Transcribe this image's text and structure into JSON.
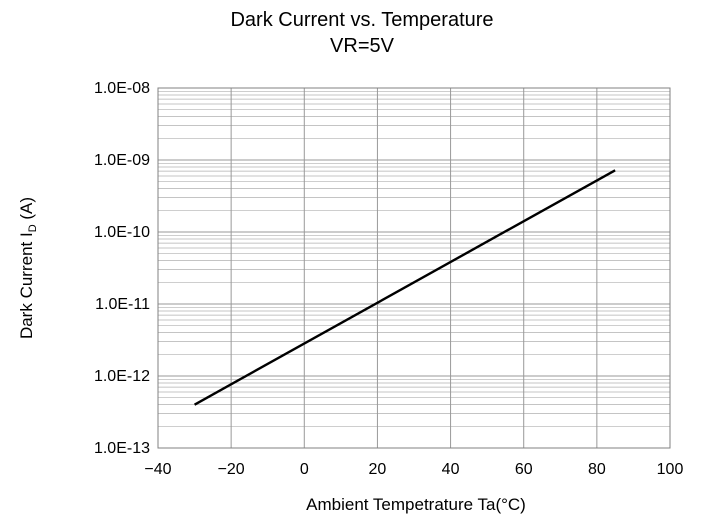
{
  "chart_data": {
    "type": "line",
    "title": "Dark Current vs. Temperature",
    "subtitle": "VR=5V",
    "xlabel": "Ambient Tempetrature Ta(°C)",
    "ylabel": {
      "prefix": "Dark Current  I",
      "subscript": "D",
      "suffix": " (A)"
    },
    "xlim": [
      -40,
      100
    ],
    "ylim": [
      1e-13,
      1e-08
    ],
    "yscale": "log",
    "grid": true,
    "x_ticks": [
      -40,
      -20,
      0,
      20,
      40,
      60,
      80,
      100
    ],
    "x_tick_labels": [
      "−40",
      "−20",
      "0",
      "20",
      "40",
      "60",
      "80",
      "100"
    ],
    "y_ticks": [
      1e-13,
      1e-12,
      1e-11,
      1e-10,
      1e-09,
      1e-08
    ],
    "y_tick_labels": [
      "1.0E-13",
      "1.0E-12",
      "1.0E-11",
      "1.0E-10",
      "1.0E-09",
      "1.0E-08"
    ],
    "series": [
      {
        "x": [
          -30,
          85
        ],
        "y": [
          4e-13,
          7.2e-10
        ]
      }
    ],
    "colors": {
      "line": "#000000",
      "major_grid": "#999999",
      "minor_grid": "#b0b0b0",
      "frame": "#808080"
    }
  }
}
